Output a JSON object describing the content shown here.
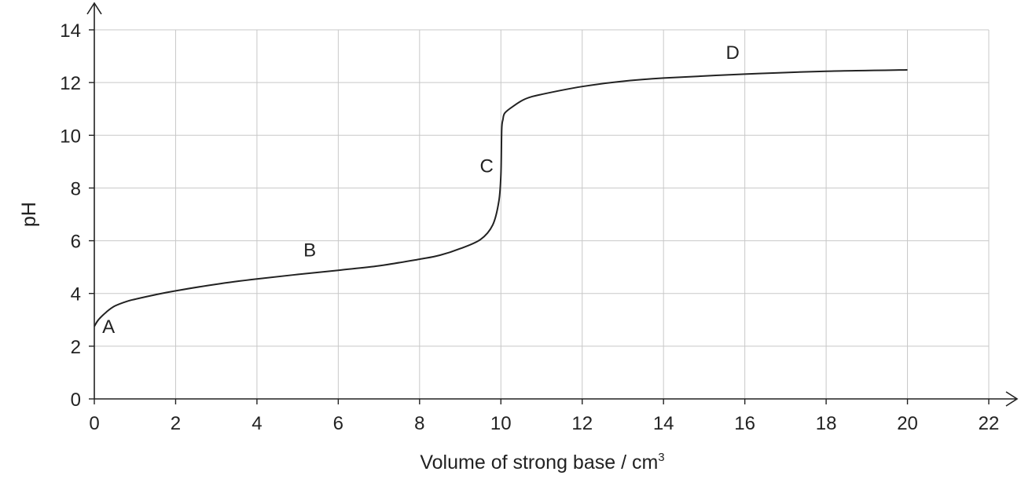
{
  "chart_data": {
    "type": "line",
    "title": "",
    "xlabel": "Volume of strong base / cm",
    "xlabel_sup": "3",
    "ylabel": "pH",
    "xlim": [
      0,
      22
    ],
    "ylim": [
      0,
      14
    ],
    "xticks": [
      0,
      2,
      4,
      6,
      8,
      10,
      12,
      14,
      16,
      18,
      20,
      22
    ],
    "yticks": [
      0,
      2,
      4,
      6,
      8,
      10,
      12,
      14
    ],
    "grid": true,
    "series": [
      {
        "x": [
          0,
          0.1,
          0.3,
          0.5,
          0.8,
          1.0,
          1.5,
          2.0,
          3.0,
          4.0,
          5.0,
          6.0,
          7.0,
          8.0,
          8.5,
          9.0,
          9.5,
          9.8,
          9.95,
          10.0,
          10.02,
          10.05,
          10.1,
          10.3,
          10.6,
          11.0,
          12.0,
          13.0,
          14.0,
          16.0,
          18.0,
          20.0
        ],
        "y": [
          2.75,
          3.0,
          3.3,
          3.52,
          3.7,
          3.78,
          3.95,
          4.1,
          4.35,
          4.55,
          4.72,
          4.88,
          5.05,
          5.3,
          5.45,
          5.7,
          6.05,
          6.6,
          7.5,
          8.5,
          10.2,
          10.6,
          10.85,
          11.1,
          11.38,
          11.55,
          11.85,
          12.05,
          12.17,
          12.32,
          12.43,
          12.48
        ]
      }
    ],
    "annotations": [
      {
        "text": "A",
        "x": 0.35,
        "y": 2.5
      },
      {
        "text": "B",
        "x": 5.3,
        "y": 5.4
      },
      {
        "text": "C",
        "x": 9.65,
        "y": 8.6
      },
      {
        "text": "D",
        "x": 15.7,
        "y": 12.9
      }
    ]
  }
}
